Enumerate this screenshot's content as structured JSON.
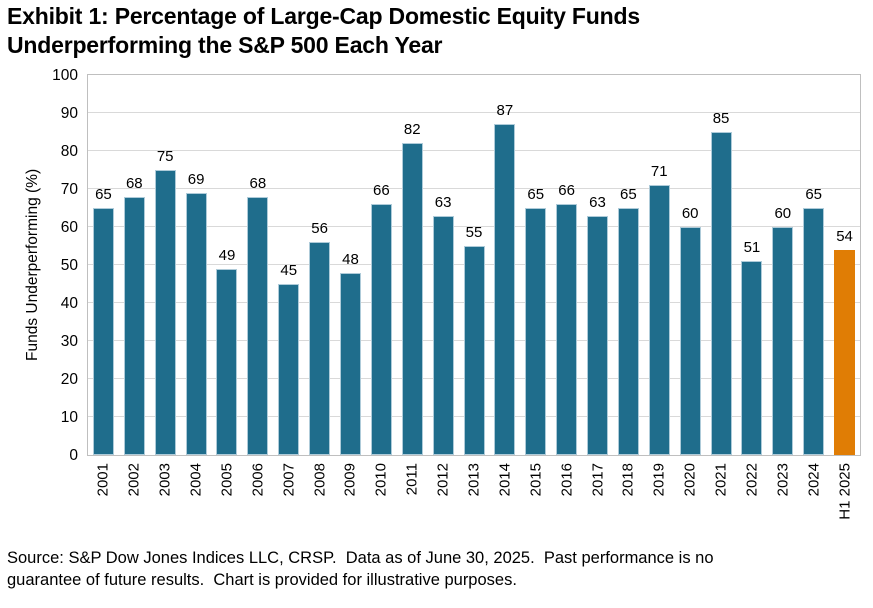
{
  "title": "Exhibit 1: Percentage of Large-Cap Domestic Equity Funds\nUnderperforming the S&P 500 Each Year",
  "source_note": "Source: S&P Dow Jones Indices LLC, CRSP.  Data as of June 30, 2025.  Past performance is no\nguarantee of future results.  Chart is provided for illustrative purposes.",
  "colors": {
    "bar_teal": "#1F6D8C",
    "bar_teal_edge": "#AECBD9",
    "bar_highlight_orange": "#E07D05",
    "gridline": "#D9D9D9",
    "plot_border": "#BFBFBF",
    "text": "#000000",
    "background": "#FFFFFF"
  },
  "chart_data": {
    "type": "bar",
    "title": "Exhibit 1: Percentage of Large-Cap Domestic Equity Funds Underperforming the S&P 500 Each Year",
    "xlabel": "",
    "ylabel": "Funds Underperforming (%)",
    "ylim": [
      0,
      100
    ],
    "ytick_step": 10,
    "grid": true,
    "legend": false,
    "categories": [
      "2001",
      "2002",
      "2003",
      "2004",
      "2005",
      "2006",
      "2007",
      "2008",
      "2009",
      "2010",
      "2011",
      "2012",
      "2013",
      "2014",
      "2015",
      "2016",
      "2017",
      "2018",
      "2019",
      "2020",
      "2021",
      "2022",
      "2023",
      "2024",
      "H1 2025"
    ],
    "values": [
      65,
      68,
      75,
      69,
      49,
      68,
      45,
      56,
      48,
      66,
      82,
      63,
      55,
      87,
      65,
      66,
      63,
      65,
      71,
      60,
      85,
      51,
      60,
      65,
      54
    ],
    "highlight_index": 24,
    "bar_color": "#1F6D8C",
    "bar_edge_color": "#AECBD9",
    "highlight_color": "#E07D05",
    "value_labels_shown": true
  }
}
